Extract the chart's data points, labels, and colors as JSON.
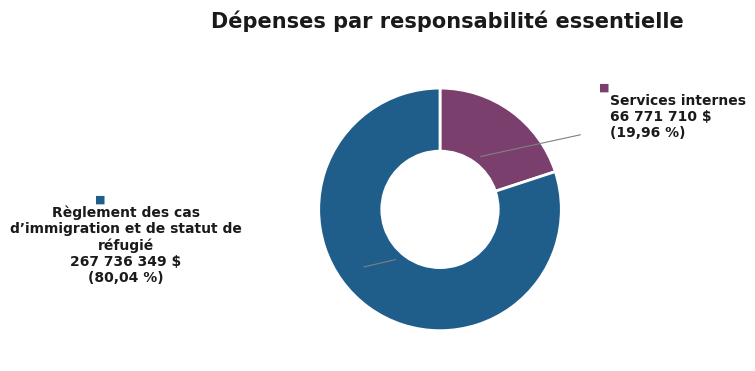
{
  "title": "Dépenses par responsabilité essentielle",
  "slices": [
    {
      "label": "Services internes",
      "value": 19.96,
      "color": "#7b3f6e"
    },
    {
      "label": "Règlement des cas",
      "value": 80.04,
      "color": "#1f5e8a"
    }
  ],
  "startangle": 90,
  "donut_width": 0.52,
  "background_color": "#ffffff",
  "title_fontsize": 15,
  "label_fontsize": 10,
  "color_blue": "#1f5e8a",
  "color_purple": "#7b3f6e",
  "annotation_color": "gray",
  "text_color": "#1a1a1a",
  "services_label_line1": "Services internes",
  "services_label_line2": "66 771 710 $",
  "services_label_line3": "(19,96 %)",
  "immigration_label_line1": "Règlement des cas",
  "immigration_label_line2": "d’immigration et de statut de",
  "immigration_label_line3": "réfugié",
  "immigration_label_line4": "267 736 349 $",
  "immigration_label_line5": "(80,04 %)"
}
